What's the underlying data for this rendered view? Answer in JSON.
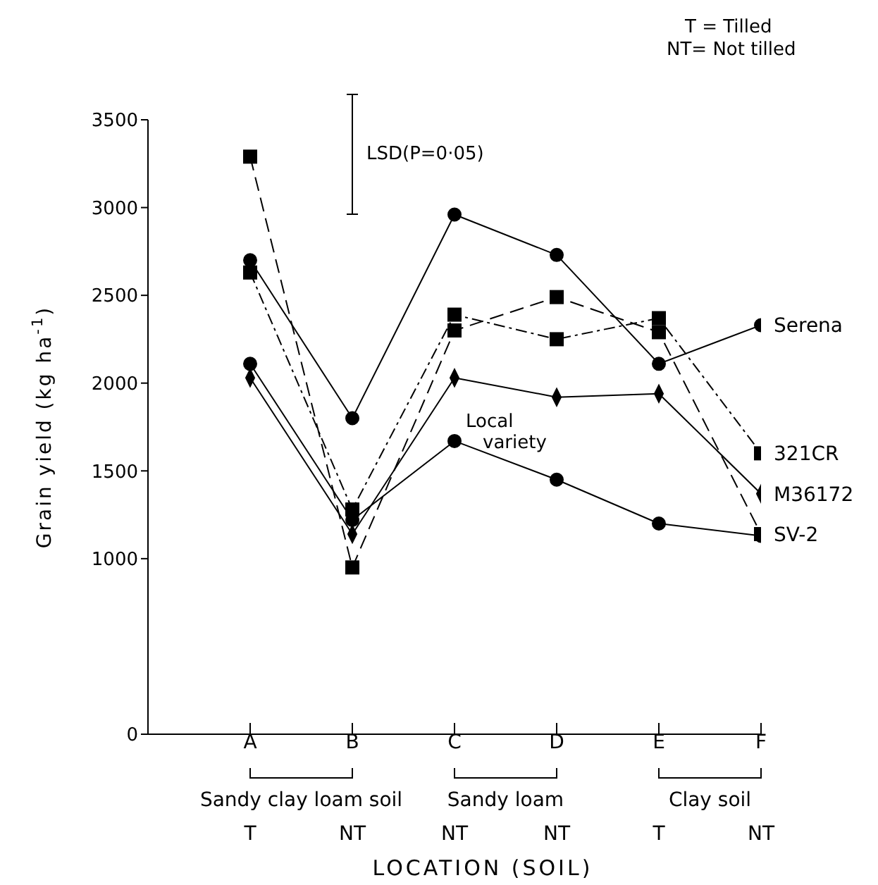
{
  "chart_data": {
    "type": "line",
    "xlabel": "LOCATION (SOIL)",
    "ylabel": "Grain yield (kg ha$^{-1}$)",
    "categories": [
      "A",
      "B",
      "C",
      "D",
      "E",
      "F"
    ],
    "ylim": [
      0,
      3500
    ],
    "yticks": [
      0,
      1000,
      1500,
      2000,
      2500,
      3000,
      3500
    ],
    "grid": false,
    "series": [
      {
        "name": "Serena",
        "color": "#000000",
        "marker": "circle",
        "line_style": "solid",
        "values": [
          2700,
          1800,
          2960,
          2730,
          2110,
          2330
        ]
      },
      {
        "name": "321CR",
        "color": "#000000",
        "marker": "square",
        "line_style": "dashdot",
        "values": [
          2630,
          1280,
          2390,
          2250,
          2370,
          1600
        ]
      },
      {
        "name": "M36172",
        "color": "#000000",
        "marker": "diamond",
        "line_style": "solid",
        "values": [
          2030,
          1140,
          2030,
          1920,
          1940,
          1370
        ]
      },
      {
        "name": "SV-2",
        "color": "#000000",
        "marker": "square",
        "line_style": "dashed",
        "values": [
          3290,
          950,
          2300,
          2490,
          2290,
          1140
        ]
      },
      {
        "color": "#000000",
        "marker": "circle",
        "line_style": "solid",
        "values": [
          2110,
          1220,
          1670,
          1450,
          1200,
          1130
        ]
      }
    ],
    "annotations": [
      {
        "text": "Local variety",
        "x": "C",
        "y": 1670
      },
      "T = Tilled",
      "NT= Not tilled",
      "LSD(P=0·05)",
      "Sandy clay loam soil",
      "Sandy loam",
      "Clay soil",
      "T",
      "NT",
      "NT",
      "NT",
      "T",
      "NT"
    ]
  }
}
